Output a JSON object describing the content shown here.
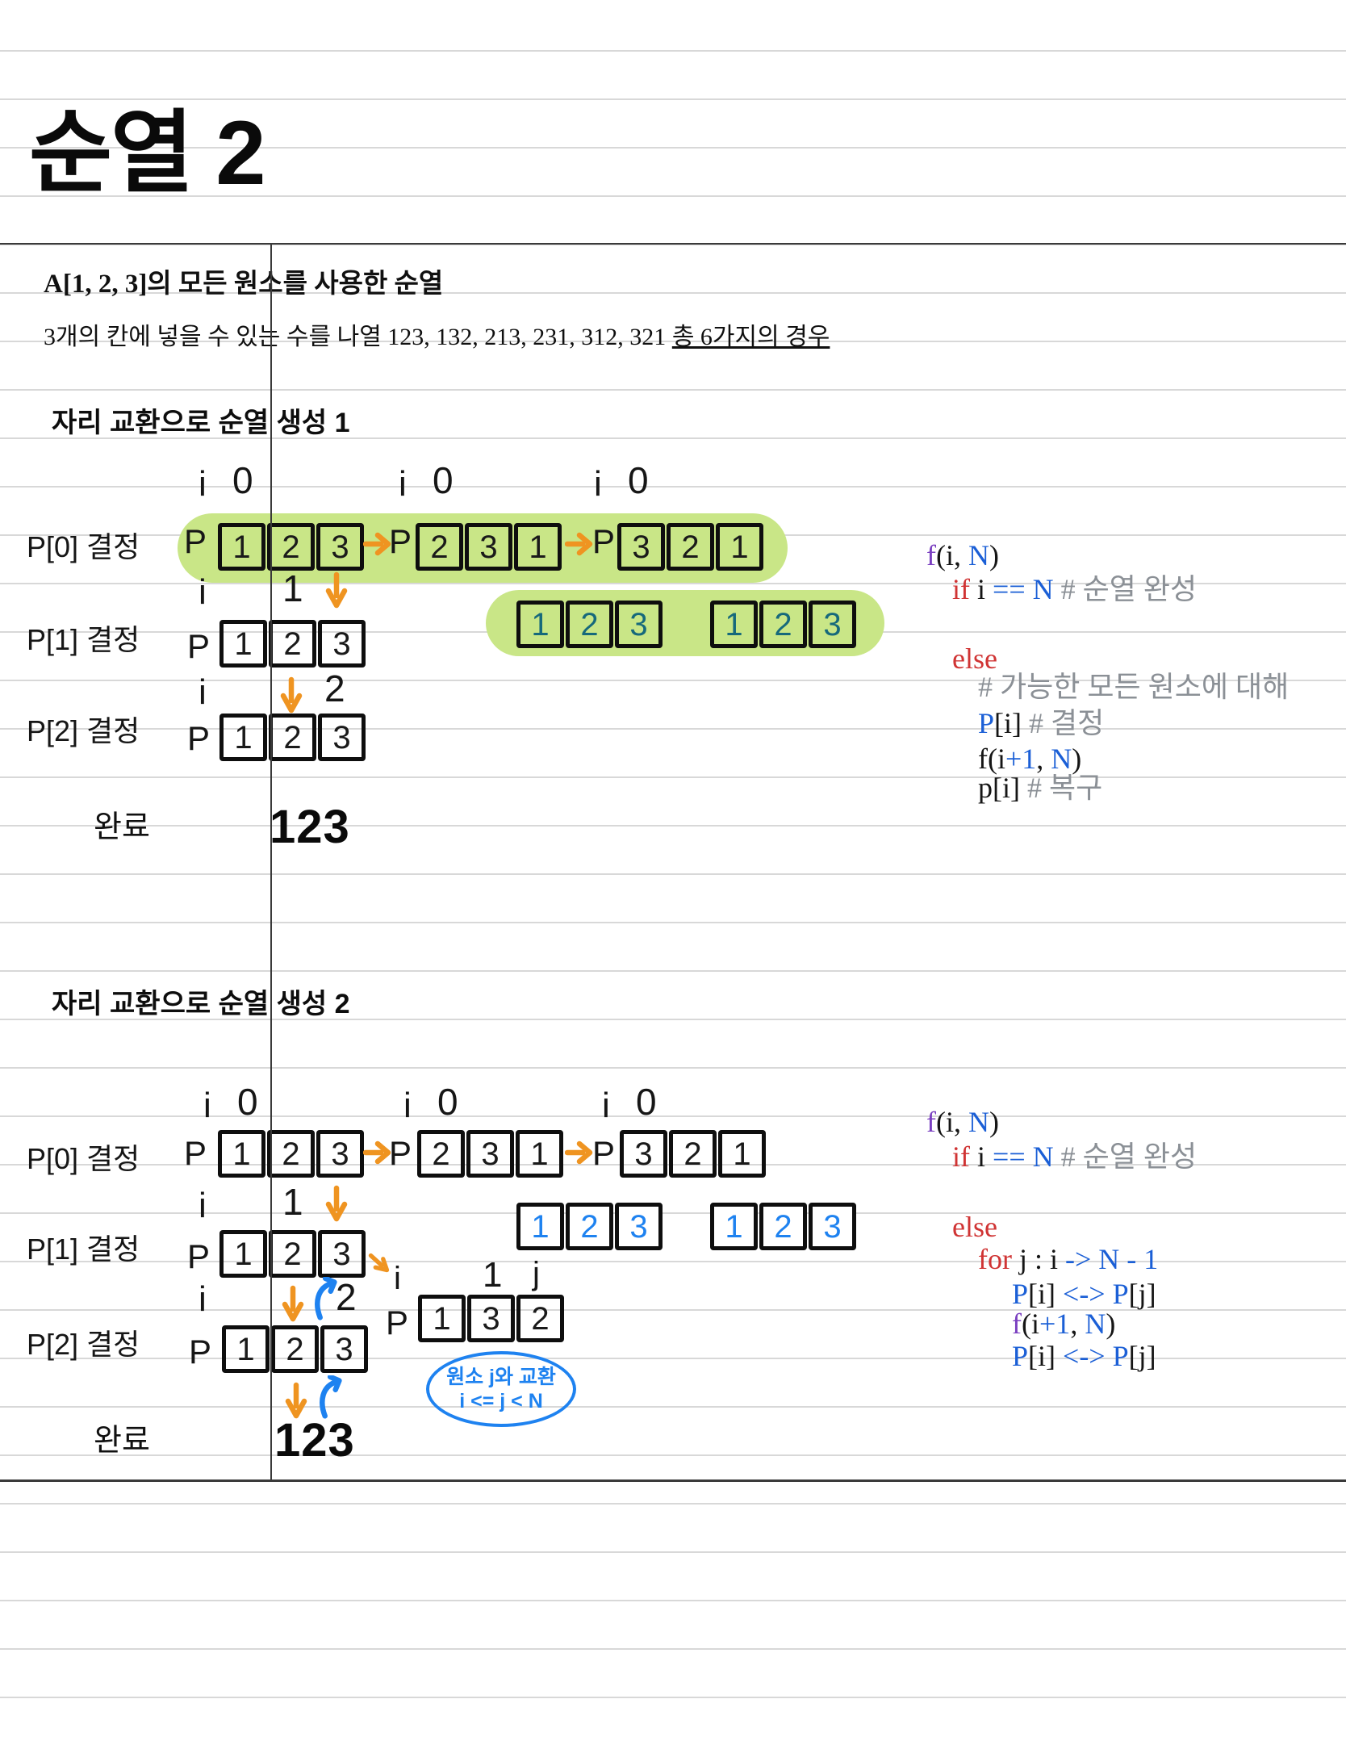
{
  "title": "순열 2",
  "intro": {
    "heading": "A[1, 2, 3]의 모든 원소를 사용한 순열",
    "body": "3개의 칸에 넣을 수 있는 수를 나열 123, 132, 213, 231, 312, 321 ",
    "underlined": "총 6가지의 경우"
  },
  "labels": {
    "p": "P",
    "i": "i",
    "j": "j",
    "done": "완료"
  },
  "s1": {
    "heading": "자리 교환으로 순열 생성 1",
    "row0": {
      "label": "P[0] 결정",
      "idx": "0",
      "groups": [
        [
          "1",
          "2",
          "3"
        ],
        [
          "2",
          "3",
          "1"
        ],
        [
          "3",
          "2",
          "1"
        ]
      ]
    },
    "row1": {
      "label": "P[1] 결정",
      "val": "1",
      "cells": [
        "1",
        "2",
        "3"
      ],
      "highlight": [
        [
          "1",
          "2",
          "3"
        ],
        [
          "1",
          "2",
          "3"
        ]
      ]
    },
    "row2": {
      "label": "P[2] 결정",
      "val": "2",
      "cells": [
        "1",
        "2",
        "3"
      ]
    },
    "done_value": "123",
    "code": [
      [
        [
          "f",
          "p"
        ],
        [
          "(i, ",
          ""
        ],
        [
          "N",
          "b"
        ],
        [
          ")",
          ""
        ]
      ],
      [
        [
          "if ",
          "r"
        ],
        [
          "i ",
          ""
        ],
        [
          "== N",
          "b"
        ],
        [
          " # 순열 완성",
          "c"
        ]
      ],
      [
        [
          "else",
          "r"
        ]
      ],
      [
        [
          "# 가능한 모든 원소에 대해",
          "c"
        ]
      ],
      [
        [
          "P",
          "b"
        ],
        [
          "[i] ",
          ""
        ],
        [
          "# 결정",
          "c"
        ]
      ],
      [
        [
          "f(i",
          ""
        ],
        [
          "+1",
          "b"
        ],
        [
          ", ",
          ""
        ],
        [
          "N",
          "b"
        ],
        [
          ")",
          ""
        ]
      ],
      [
        [
          "p[i] ",
          ""
        ],
        [
          "# 복구",
          "c"
        ]
      ]
    ]
  },
  "s2": {
    "heading": "자리 교환으로 순열 생성 2",
    "row0": {
      "label": "P[0] 결정",
      "idx": "0",
      "groups": [
        [
          "1",
          "2",
          "3"
        ],
        [
          "2",
          "3",
          "1"
        ],
        [
          "3",
          "2",
          "1"
        ]
      ]
    },
    "row1": {
      "label": "P[1] 결정",
      "val": "1",
      "cells": [
        "1",
        "2",
        "3"
      ],
      "blue_groups": [
        [
          "1",
          "2",
          "3"
        ],
        [
          "1",
          "2",
          "3"
        ]
      ],
      "swap": {
        "i": "i",
        "one": "1",
        "j": "j",
        "cells": [
          "1",
          "3",
          "2"
        ]
      }
    },
    "row2": {
      "label": "P[2] 결정",
      "val": "2",
      "cells": [
        "1",
        "2",
        "3"
      ]
    },
    "oval": {
      "line1": "원소 j와 교환",
      "line2": "i <= j < N"
    },
    "done_value": "123",
    "code": [
      [
        [
          "f",
          "p"
        ],
        [
          "(i, ",
          ""
        ],
        [
          "N",
          "b"
        ],
        [
          ")",
          ""
        ]
      ],
      [
        [
          "if ",
          "r"
        ],
        [
          "i ",
          ""
        ],
        [
          "== N",
          "b"
        ],
        [
          " # 순열 완성",
          "c"
        ]
      ],
      [
        [
          "else",
          "r"
        ]
      ],
      [
        [
          "for ",
          "r"
        ],
        [
          "j : i ",
          ""
        ],
        [
          "-> N - 1",
          "b"
        ]
      ],
      [
        [
          "P",
          "b"
        ],
        [
          "[i] ",
          ""
        ],
        [
          "<-> ",
          "b"
        ],
        [
          "P",
          "b"
        ],
        [
          "[j]",
          ""
        ]
      ],
      [
        [
          "f",
          "p"
        ],
        [
          "(i",
          ""
        ],
        [
          "+1",
          "b"
        ],
        [
          ", ",
          ""
        ],
        [
          "N",
          "b"
        ],
        [
          ")",
          ""
        ]
      ],
      [
        [
          "P",
          "b"
        ],
        [
          "[i] ",
          ""
        ],
        [
          "<-> ",
          "b"
        ],
        [
          "P",
          "b"
        ],
        [
          "[j]",
          ""
        ]
      ]
    ]
  },
  "colors": {
    "green": "#c9e687",
    "teal": "#16697b",
    "blue": "#1e82f0",
    "orange": "#ef9421",
    "codeblue": "#1b5fd6",
    "codered": "#d03434",
    "codepurple": "#7a3fc0",
    "comment": "#8b9096",
    "rule": "#d8d8d8",
    "ink-line": "#3a3a3a"
  }
}
